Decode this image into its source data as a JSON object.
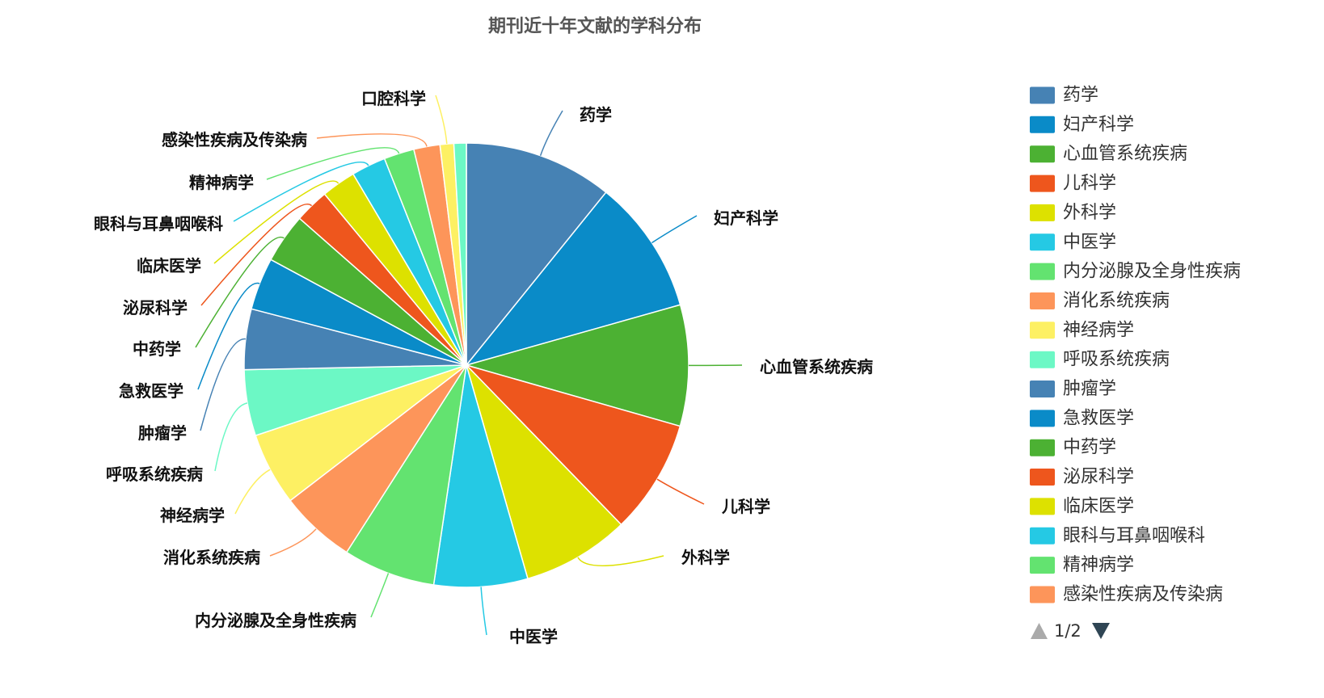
{
  "chart_data": {
    "type": "pie",
    "title": "期刊近十年文献的学科分布",
    "categories": [
      "药学",
      "妇产科学",
      "心血管系统疾病",
      "儿科学",
      "外科学",
      "中医学",
      "内分泌腺及全身性疾病",
      "消化系统疾病",
      "神经病学",
      "呼吸系统疾病",
      "肿瘤学",
      "急救医学",
      "中药学",
      "泌尿科学",
      "临床医学",
      "眼科与耳鼻咽喉科",
      "精神病学",
      "感染性疾病及传染病",
      "口腔科学",
      ""
    ],
    "values": [
      10.8,
      9.8,
      8.8,
      8.3,
      7.8,
      6.8,
      6.7,
      5.5,
      5.3,
      4.8,
      4.4,
      3.8,
      3.6,
      2.5,
      2.5,
      2.5,
      2.2,
      1.9,
      1.0,
      0.9
    ],
    "palette": [
      "#4682b4",
      "#0a8bc8",
      "#4cb133",
      "#ee561d",
      "#dde100",
      "#25c9e4",
      "#63e370",
      "#fd955a",
      "#fdf063",
      "#6cf8c5"
    ],
    "legend": {
      "placement": "right",
      "items": [
        "药学",
        "妇产科学",
        "心血管系统疾病",
        "儿科学",
        "外科学",
        "中医学",
        "内分泌腺及全身性疾病",
        "消化系统疾病",
        "神经病学",
        "呼吸系统疾病",
        "肿瘤学",
        "急救医学",
        "中药学",
        "泌尿科学",
        "临床医学",
        "眼科与耳鼻咽喉科",
        "精神病学",
        "感染性疾病及传染病"
      ],
      "pager": "1/2"
    }
  }
}
